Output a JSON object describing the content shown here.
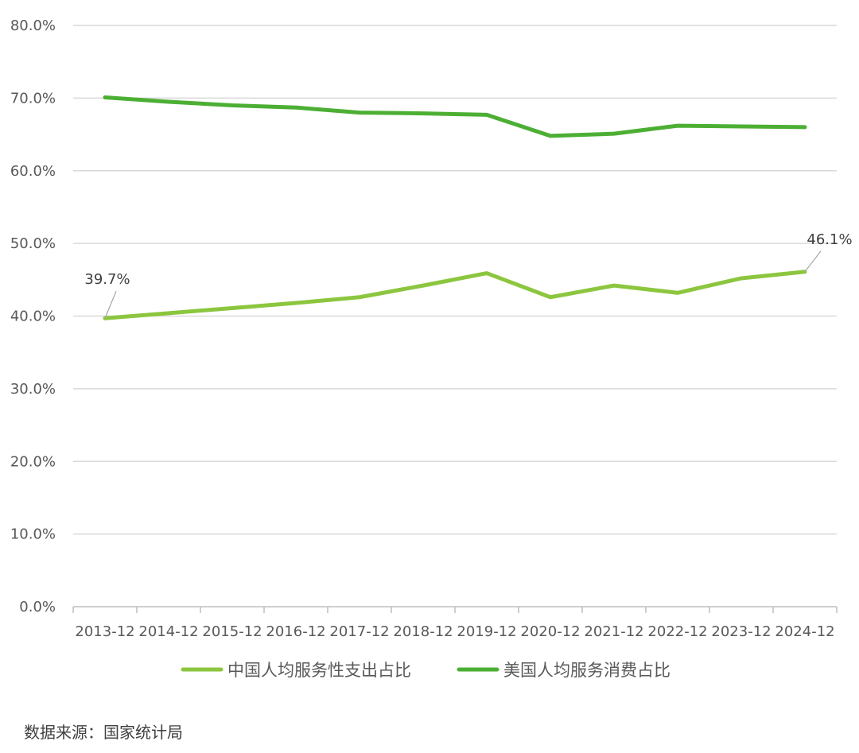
{
  "chart_data": {
    "type": "line",
    "categories": [
      "2013-12",
      "2014-12",
      "2015-12",
      "2016-12",
      "2017-12",
      "2018-12",
      "2019-12",
      "2020-12",
      "2021-12",
      "2022-12",
      "2023-12",
      "2024-12"
    ],
    "yticks": [
      "0.0%",
      "10.0%",
      "20.0%",
      "30.0%",
      "40.0%",
      "50.0%",
      "60.0%",
      "70.0%",
      "80.0%"
    ],
    "ylim": [
      0,
      80
    ],
    "grid": true,
    "legend_position": "bottom",
    "series": [
      {
        "name": "中国人均服务性支出占比",
        "color": "#8cc63f",
        "values": [
          39.7,
          40.4,
          41.1,
          41.8,
          42.6,
          44.2,
          45.9,
          42.6,
          44.2,
          43.2,
          45.2,
          46.1
        ]
      },
      {
        "name": "美国人均服务消费占比",
        "color": "#4caf34",
        "values": [
          70.1,
          69.5,
          69.0,
          68.7,
          68.0,
          67.9,
          67.7,
          64.8,
          65.1,
          66.2,
          66.1,
          66.0
        ]
      }
    ],
    "annotations": [
      {
        "series": 0,
        "index": 0,
        "text": "39.7%"
      },
      {
        "series": 0,
        "index": 11,
        "text": "46.1%"
      }
    ]
  },
  "source_text": "数据来源：国家统计局"
}
